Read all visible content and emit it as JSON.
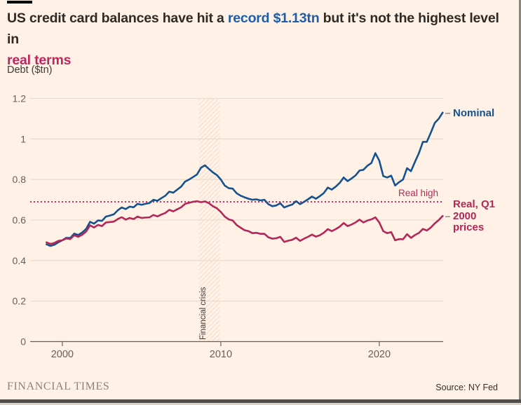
{
  "title": {
    "prefix": "US credit card balances have hit a ",
    "highlight_blue": "record $1.13tn",
    "middle": " but it's not the highest level in",
    "highlight_red": "real terms"
  },
  "axis_title": "Debt ($tn)",
  "annotations": {
    "nominal_label": "Nominal",
    "real_label_lines": [
      "Real, Q1",
      "2000",
      "prices"
    ],
    "real_high_label": "Real high",
    "crisis_label": "Financial crisis"
  },
  "footer": {
    "brand": "FINANCIAL TIMES",
    "source": "Source: NY Fed"
  },
  "colors": {
    "background": "#FFF1E5",
    "nominal": "#14528F",
    "real": "#B32658",
    "real_high_dotted": "#CC2C60",
    "title_blue": "#1E5DA8",
    "title_red": "#BE265E",
    "grid": "#E7DACB",
    "axis": "#66605B",
    "tick_text": "#66605B",
    "hatch": "#EAD5C2",
    "label_dash": "#9A948E",
    "text_dark": "#2E2A26"
  },
  "chart_data": {
    "type": "line",
    "title": "US credit card balances have hit a record $1.13tn but it's not the highest level in real terms",
    "ylabel": "Debt ($tn)",
    "xlabel": "",
    "grid": "horizontal",
    "legend_position": "inline-right",
    "x_unit": "year (quarterly points)",
    "x_start": 1999.0,
    "x_step": 0.25,
    "xlim": [
      1997.97,
      2024.03
    ],
    "ylim": [
      0,
      1.2
    ],
    "x_ticks": [
      2000,
      2010,
      2020
    ],
    "y_ticks": [
      0,
      0.2,
      0.4,
      0.6,
      0.8,
      1,
      1.2
    ],
    "real_high_value": 0.69,
    "record_value": 1.13,
    "crisis_band_years": [
      2008.62,
      2009.95
    ],
    "series": [
      {
        "name": "Nominal",
        "color_key": "nominal",
        "values": [
          0.48,
          0.472,
          0.478,
          0.49,
          0.5,
          0.512,
          0.511,
          0.533,
          0.526,
          0.538,
          0.556,
          0.591,
          0.582,
          0.598,
          0.596,
          0.617,
          0.622,
          0.628,
          0.648,
          0.662,
          0.654,
          0.666,
          0.663,
          0.68,
          0.675,
          0.68,
          0.684,
          0.7,
          0.695,
          0.708,
          0.72,
          0.74,
          0.735,
          0.75,
          0.765,
          0.79,
          0.8,
          0.812,
          0.825,
          0.858,
          0.87,
          0.852,
          0.835,
          0.822,
          0.8,
          0.77,
          0.757,
          0.755,
          0.732,
          0.72,
          0.712,
          0.705,
          0.7,
          0.702,
          0.697,
          0.7,
          0.678,
          0.668,
          0.672,
          0.683,
          0.662,
          0.67,
          0.676,
          0.693,
          0.678,
          0.69,
          0.702,
          0.716,
          0.705,
          0.718,
          0.733,
          0.76,
          0.75,
          0.765,
          0.783,
          0.81,
          0.792,
          0.805,
          0.82,
          0.844,
          0.848,
          0.868,
          0.881,
          0.93,
          0.893,
          0.817,
          0.81,
          0.819,
          0.77,
          0.787,
          0.8,
          0.856,
          0.841,
          0.887,
          0.93,
          0.986,
          0.986,
          1.031,
          1.079,
          1.1,
          1.13
        ]
      },
      {
        "name": "Real, Q1 2000 prices",
        "color_key": "real",
        "values": [
          0.49,
          0.482,
          0.487,
          0.497,
          0.5,
          0.509,
          0.506,
          0.525,
          0.517,
          0.527,
          0.543,
          0.574,
          0.563,
          0.576,
          0.57,
          0.588,
          0.59,
          0.592,
          0.605,
          0.614,
          0.602,
          0.61,
          0.605,
          0.617,
          0.61,
          0.612,
          0.613,
          0.625,
          0.618,
          0.627,
          0.635,
          0.65,
          0.643,
          0.653,
          0.663,
          0.68,
          0.685,
          0.69,
          0.693,
          0.688,
          0.692,
          0.683,
          0.668,
          0.658,
          0.64,
          0.617,
          0.603,
          0.598,
          0.575,
          0.562,
          0.55,
          0.545,
          0.535,
          0.537,
          0.532,
          0.532,
          0.515,
          0.508,
          0.51,
          0.517,
          0.492,
          0.498,
          0.502,
          0.513,
          0.497,
          0.508,
          0.517,
          0.528,
          0.518,
          0.525,
          0.537,
          0.555,
          0.545,
          0.555,
          0.567,
          0.585,
          0.57,
          0.578,
          0.588,
          0.602,
          0.588,
          0.598,
          0.603,
          0.613,
          0.588,
          0.545,
          0.535,
          0.54,
          0.5,
          0.506,
          0.505,
          0.53,
          0.512,
          0.526,
          0.536,
          0.556,
          0.548,
          0.563,
          0.583,
          0.6,
          0.62
        ]
      }
    ]
  }
}
